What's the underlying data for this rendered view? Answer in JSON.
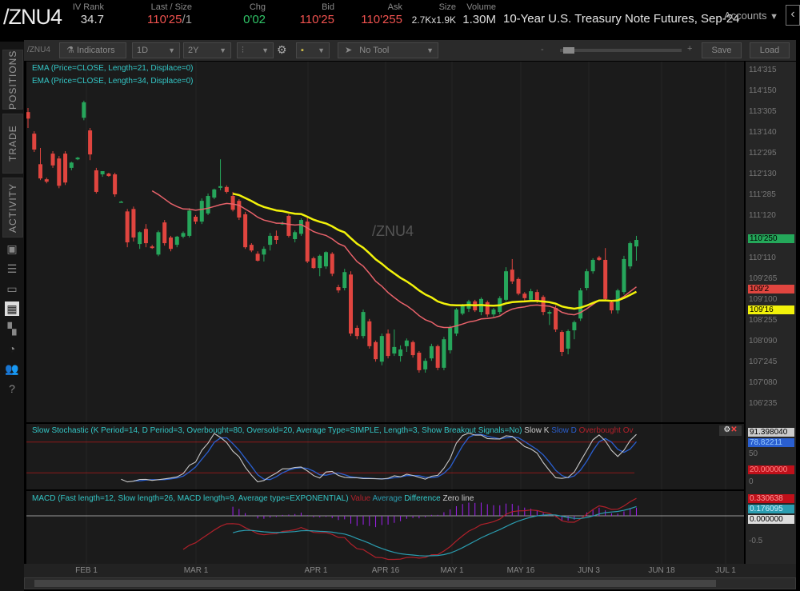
{
  "header": {
    "symbol": "/ZNU4",
    "fields": [
      {
        "label": "IV Rank",
        "value": "34.7",
        "color": "wht"
      },
      {
        "label": "Last / Size",
        "value": "110'25",
        "extra": "/1",
        "color": "red"
      },
      {
        "label": "Chg",
        "value": "0'02",
        "color": "grn"
      },
      {
        "label": "Bid",
        "value": "110'25",
        "color": "red"
      },
      {
        "label": "Ask",
        "value": "110'255",
        "color": "red"
      },
      {
        "label": "Size",
        "value": "2.7Kx1.9K",
        "color": "wht"
      },
      {
        "label": "Volume",
        "value": "1.30M",
        "color": "wht"
      }
    ],
    "description": "10-Year U.S. Treasury Note Futures, Sep-24",
    "accounts": "Accounts"
  },
  "sidebar": {
    "tabs": [
      "POSITIONS",
      "TRADE",
      "ACTIVITY"
    ],
    "icons": [
      "chart-gallery-icon",
      "list-icon",
      "tv-icon",
      "chart-grid-icon",
      "tiles-icon",
      "clock-icon",
      "people-icon",
      "help-icon"
    ]
  },
  "toolbar": {
    "symbol": "/ZNU4",
    "indicators": "Indicators",
    "aggregation": "1D",
    "timeframe": "2Y",
    "tool": "No Tool",
    "save": "Save",
    "load": "Load",
    "zoom_minus": "-",
    "zoom_plus": "+"
  },
  "legend": {
    "ema21": "EMA (Price=CLOSE, Length=21, Displace=0)",
    "ema34": "EMA (Price=CLOSE, Length=34, Displace=0)",
    "watermark": "/ZNU4"
  },
  "price_axis": {
    "ticks": [
      "114'315",
      "114'150",
      "113'305",
      "113'140",
      "112'295",
      "112'130",
      "111'285",
      "111'120",
      "110'110",
      "109'265",
      "109'100",
      "108'255",
      "108'090",
      "107'245",
      "107'080",
      "106'235"
    ],
    "last_tag": "110'250",
    "ema34_tag": "109'16",
    "ema21_tag": "109'2"
  },
  "stoch": {
    "title": "Slow Stochastic (K Period=14, D Period=3, Overbought=80, Oversold=20, Average Type=SIMPLE, Length=3, Show Breakout Signals=No)",
    "slowk": "Slow K",
    "slowd": "Slow D",
    "overbought": "Overbought",
    "oversold": "Ov",
    "ticks": [
      "50",
      "0"
    ],
    "tags": {
      "k": "91.398040",
      "d": "78.82211",
      "os": "20.000000"
    },
    "levels": [
      80,
      20
    ]
  },
  "macd": {
    "title": "MACD (Fast length=12, Slow length=26, MACD length=9, Average type=EXPONENTIAL)",
    "value": "Value",
    "average": "Average",
    "difference": "Difference",
    "zero": "Zero line",
    "ticks": [
      "-0.5"
    ],
    "tags": {
      "value": "0.330638",
      "avg": "0.176095",
      "zero": "0.000000"
    }
  },
  "dates": [
    "FEB 1",
    "MAR 1",
    "APR 1",
    "APR 16",
    "MAY 1",
    "MAY 16",
    "JUN 3",
    "JUN 18",
    "JUL 1"
  ],
  "colors": {
    "up": "#26a65b",
    "down": "#e0453f",
    "ema21": "#e8626a",
    "ema34": "#f2f20a",
    "slowk": "#c8c8c8",
    "slowd": "#2a5fd0",
    "macd_value": "#b0202a",
    "macd_avg": "#2a9db0",
    "macd_diff": "#a020f0",
    "legend": "#33c6c6"
  },
  "chart_data": {
    "type": "candlestick",
    "candles": [
      [
        113.94,
        114.04,
        113.55,
        113.78
      ],
      [
        113.41,
        113.47,
        112.96,
        113.02
      ],
      [
        112.66,
        113.06,
        112.27,
        112.31
      ],
      [
        112.29,
        112.33,
        112.19,
        112.23
      ],
      [
        112.92,
        112.98,
        112.57,
        112.63
      ],
      [
        112.8,
        112.86,
        112.07,
        112.13
      ],
      [
        112.92,
        112.98,
        112.15,
        112.21
      ],
      [
        112.57,
        112.72,
        112.51,
        112.7
      ],
      [
        112.78,
        112.84,
        112.76,
        112.82
      ],
      [
        113.8,
        114.22,
        113.74,
        114.18
      ],
      [
        113.49,
        113.55,
        112.76,
        112.9
      ],
      [
        112.51,
        112.57,
        111.94,
        111.98
      ],
      [
        112.41,
        112.49,
        112.35,
        112.49
      ],
      [
        112.43,
        112.45,
        112.35,
        112.37
      ],
      [
        112.41,
        112.45,
        111.86,
        111.92
      ],
      [
        111.74,
        111.76,
        111.72,
        111.74
      ],
      [
        111.5,
        111.56,
        110.62,
        110.74
      ],
      [
        111.56,
        111.62,
        110.76,
        110.86
      ],
      [
        110.7,
        111.01,
        110.58,
        110.99
      ],
      [
        111.07,
        111.19,
        110.62,
        110.72
      ],
      [
        110.64,
        110.68,
        110.58,
        110.6
      ],
      [
        110.44,
        111.03,
        110.4,
        110.99
      ],
      [
        111.23,
        111.29,
        110.66,
        110.72
      ],
      [
        110.86,
        110.9,
        110.52,
        110.58
      ],
      [
        110.68,
        110.9,
        110.62,
        110.88
      ],
      [
        110.88,
        111.01,
        110.84,
        110.97
      ],
      [
        110.9,
        111.58,
        110.86,
        111.52
      ],
      [
        111.37,
        111.41,
        111.19,
        111.25
      ],
      [
        111.25,
        111.82,
        111.19,
        111.76
      ],
      [
        111.45,
        111.94,
        111.41,
        111.88
      ],
      [
        111.84,
        112.06,
        111.8,
        112.04
      ],
      [
        112.08,
        112.78,
        112.02,
        112.12
      ],
      [
        112.1,
        112.14,
        111.94,
        111.98
      ],
      [
        111.88,
        111.98,
        111.5,
        111.54
      ],
      [
        111.76,
        111.8,
        111.29,
        111.35
      ],
      [
        111.43,
        111.49,
        110.58,
        110.62
      ],
      [
        110.68,
        110.72,
        110.5,
        110.54
      ],
      [
        110.46,
        110.52,
        110.27,
        110.29
      ],
      [
        110.44,
        110.64,
        110.27,
        110.58
      ],
      [
        110.68,
        110.97,
        110.54,
        110.9
      ],
      [
        110.9,
        111.03,
        110.7,
        110.8
      ],
      [
        111.21,
        111.25,
        111.17,
        111.21
      ],
      [
        111.39,
        111.43,
        110.86,
        110.9
      ],
      [
        110.82,
        111.03,
        110.74,
        110.99
      ],
      [
        110.95,
        111.33,
        110.9,
        111.29
      ],
      [
        111.25,
        111.35,
        110.23,
        110.27
      ],
      [
        110.35,
        110.39,
        110.09,
        110.11
      ],
      [
        110.11,
        110.44,
        109.91,
        110.41
      ],
      [
        110.15,
        110.52,
        110.09,
        110.5
      ],
      [
        110.46,
        110.5,
        109.91,
        109.97
      ],
      [
        109.64,
        109.7,
        109.5,
        109.56
      ],
      [
        109.62,
        110.09,
        109.56,
        110.01
      ],
      [
        109.95,
        110.03,
        108.44,
        108.5
      ],
      [
        108.64,
        108.7,
        108.36,
        108.44
      ],
      [
        108.44,
        109.09,
        108.38,
        109.03
      ],
      [
        108.8,
        108.86,
        108.13,
        108.19
      ],
      [
        108.29,
        108.33,
        107.81,
        107.87
      ],
      [
        107.81,
        108.5,
        107.72,
        108.44
      ],
      [
        108.5,
        108.6,
        107.89,
        107.95
      ],
      [
        108.01,
        108.6,
        107.95,
        108.17
      ],
      [
        107.95,
        108.21,
        107.81,
        108.11
      ],
      [
        108.19,
        108.38,
        108.05,
        108.33
      ],
      [
        108.29,
        108.33,
        107.91,
        107.97
      ],
      [
        108.03,
        108.07,
        107.54,
        107.6
      ],
      [
        107.62,
        107.89,
        107.54,
        107.83
      ],
      [
        107.89,
        108.25,
        107.83,
        108.19
      ],
      [
        108.19,
        108.23,
        107.6,
        107.66
      ],
      [
        107.66,
        108.42,
        107.6,
        108.36
      ],
      [
        108.09,
        108.7,
        108.01,
        108.64
      ],
      [
        108.5,
        109.13,
        108.44,
        109.09
      ],
      [
        108.99,
        109.23,
        108.95,
        109.19
      ],
      [
        109.11,
        109.33,
        109.03,
        109.29
      ],
      [
        109.29,
        109.33,
        109.03,
        109.07
      ],
      [
        109.03,
        109.39,
        108.95,
        109.35
      ],
      [
        109.27,
        109.31,
        108.91,
        108.97
      ],
      [
        108.97,
        109.13,
        108.91,
        109.09
      ],
      [
        109.03,
        109.42,
        108.97,
        109.37
      ],
      [
        109.33,
        110.13,
        109.29,
        110.03
      ],
      [
        110.07,
        110.33,
        109.72,
        109.78
      ],
      [
        109.84,
        109.88,
        109.44,
        109.48
      ],
      [
        109.48,
        109.52,
        109.31,
        109.37
      ],
      [
        109.33,
        109.6,
        109.29,
        109.54
      ],
      [
        109.52,
        109.58,
        109.25,
        109.29
      ],
      [
        109.4,
        109.44,
        108.95,
        109.03
      ],
      [
        108.99,
        109.07,
        108.71,
        109.03
      ],
      [
        109.13,
        109.19,
        108.54,
        108.6
      ],
      [
        108.54,
        108.58,
        107.95,
        108.05
      ],
      [
        108.13,
        108.6,
        107.99,
        108.56
      ],
      [
        108.58,
        108.82,
        108.36,
        108.78
      ],
      [
        108.87,
        109.62,
        108.81,
        109.56
      ],
      [
        109.62,
        110.09,
        109.56,
        110.03
      ],
      [
        110.03,
        110.35,
        109.97,
        110.31
      ],
      [
        110.37,
        110.41,
        110.29,
        110.31
      ],
      [
        110.31,
        110.6,
        109.29,
        109.35
      ],
      [
        109.27,
        109.31,
        108.99,
        109.07
      ],
      [
        109.07,
        109.6,
        108.99,
        109.56
      ],
      [
        109.52,
        110.41,
        109.46,
        110.33
      ],
      [
        110.15,
        110.76,
        110.09,
        110.72
      ],
      [
        110.64,
        110.9,
        110.29,
        110.8
      ]
    ],
    "price_range": [
      106.5,
      115.2
    ],
    "stoch_range": [
      0,
      100
    ],
    "macd_range": [
      -0.9,
      0.4
    ]
  }
}
